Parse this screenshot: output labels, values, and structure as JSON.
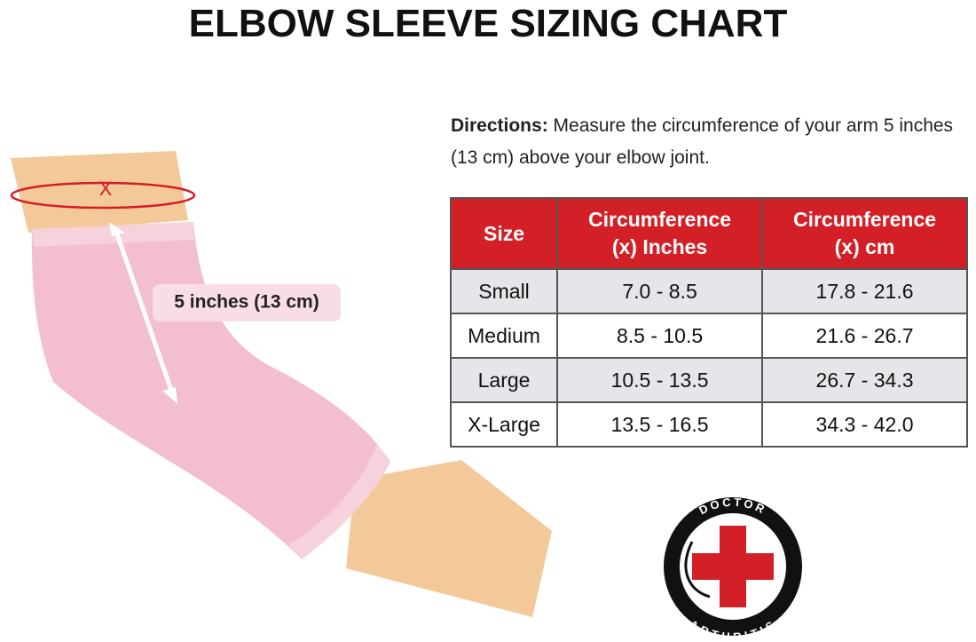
{
  "title": "ELBOW SLEEVE SIZING CHART",
  "directions": {
    "label": "Directions:",
    "text": "Measure the circumference of your arm 5 inches (13 cm) above your elbow joint."
  },
  "illustration": {
    "marker": "X",
    "distance": "5 inches (13 cm)"
  },
  "table": {
    "header": [
      [
        "Size"
      ],
      [
        "Circumference",
        "(x) Inches"
      ],
      [
        "Circumference",
        "(x) cm"
      ]
    ],
    "rows": [
      [
        "Small",
        "7.0 - 8.5",
        "17.8 - 21.6"
      ],
      [
        "Medium",
        "8.5 - 10.5",
        "21.6 - 26.7"
      ],
      [
        "Large",
        "10.5 - 13.5",
        "26.7 - 34.3"
      ],
      [
        "X-Large",
        "13.5 - 16.5",
        "34.3 - 42.0"
      ]
    ]
  },
  "logo": {
    "top": "DOCTOR",
    "bottom": "ARTHRITIS"
  }
}
